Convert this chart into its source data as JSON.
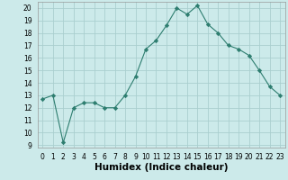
{
  "x": [
    0,
    1,
    2,
    3,
    4,
    5,
    6,
    7,
    8,
    9,
    10,
    11,
    12,
    13,
    14,
    15,
    16,
    17,
    18,
    19,
    20,
    21,
    22,
    23
  ],
  "y": [
    12.7,
    13.0,
    9.2,
    12.0,
    12.4,
    12.4,
    12.0,
    12.0,
    13.0,
    14.5,
    16.7,
    17.4,
    18.6,
    20.0,
    19.5,
    20.2,
    18.7,
    18.0,
    17.0,
    16.7,
    16.2,
    15.0,
    13.7,
    13.0
  ],
  "xlabel": "Humidex (Indice chaleur)",
  "xlim": [
    -0.5,
    23.5
  ],
  "ylim": [
    8.8,
    20.5
  ],
  "yticks": [
    9,
    10,
    11,
    12,
    13,
    14,
    15,
    16,
    17,
    18,
    19,
    20
  ],
  "xticks": [
    0,
    1,
    2,
    3,
    4,
    5,
    6,
    7,
    8,
    9,
    10,
    11,
    12,
    13,
    14,
    15,
    16,
    17,
    18,
    19,
    20,
    21,
    22,
    23
  ],
  "line_color": "#2d7d6f",
  "marker": "D",
  "marker_size": 2.2,
  "bg_color": "#cceaea",
  "grid_color": "#aacfcf",
  "xlabel_fontsize": 7.5,
  "tick_fontsize": 5.5
}
